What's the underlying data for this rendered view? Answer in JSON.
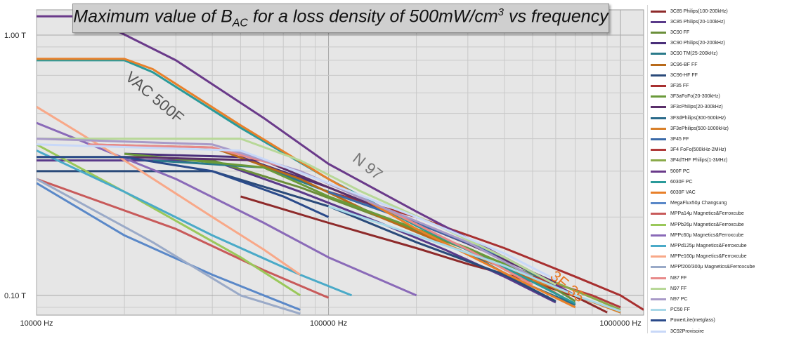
{
  "chart_data": {
    "type": "line",
    "title_parts": {
      "before": "Maximum value of B",
      "sub": "AC",
      "middle": " for a loss density of 500mW/cm",
      "sup": "3",
      "after": " vs frequency"
    },
    "x_scale": "log",
    "y_scale": "log",
    "xlim": [
      10000,
      1200000
    ],
    "ylim": [
      0.084,
      1.25
    ],
    "x_ticks": [
      {
        "value": 10000,
        "label": "10000 Hz"
      },
      {
        "value": 100000,
        "label": "100000 Hz"
      },
      {
        "value": 1000000,
        "label": "1000000 Hz"
      }
    ],
    "y_ticks": [
      {
        "value": 1.0,
        "label": "1.00 T"
      },
      {
        "value": 0.1,
        "label": "0.10 T"
      }
    ],
    "grid": true,
    "legend_position": "right",
    "annotations": [
      {
        "text": "VAC 500F",
        "x": 20000,
        "y": 0.68,
        "color": "#555555",
        "rotate": 40
      },
      {
        "text": "N 97",
        "x": 120000,
        "y": 0.33,
        "color": "#777777",
        "rotate": 38
      },
      {
        "text": "3F 35",
        "x": 570000,
        "y": 0.117,
        "color": "#e87722",
        "rotate": 40
      }
    ],
    "series": [
      {
        "name": "3C85 Philips(100-200kHz)",
        "color": "#8e2a2a",
        "x": [
          50000,
          100000,
          200000,
          300000,
          500000,
          700000,
          900000
        ],
        "y": [
          0.24,
          0.19,
          0.152,
          0.132,
          0.113,
          0.099,
          0.086
        ]
      },
      {
        "name": "3C85 Philips(20-100kHz)",
        "color": "#5a3a8a",
        "x": [
          10000,
          20000,
          40000,
          80000,
          150000,
          250000,
          400000,
          600000
        ],
        "y": [
          0.33,
          0.33,
          0.33,
          0.25,
          0.19,
          0.15,
          0.118,
          0.094
        ]
      },
      {
        "name": "3C90 FF",
        "color": "#6b8f3a",
        "x": [
          10000,
          25000,
          40000,
          80000,
          150000,
          300000,
          500000,
          700000
        ],
        "y": [
          0.34,
          0.34,
          0.33,
          0.26,
          0.2,
          0.15,
          0.12,
          0.095
        ]
      },
      {
        "name": "3C90 Philips(20-200kHz)",
        "color": "#4a2f7a",
        "x": [
          20000,
          50000,
          100000,
          200000,
          400000,
          600000
        ],
        "y": [
          0.35,
          0.34,
          0.26,
          0.19,
          0.14,
          0.11
        ]
      },
      {
        "name": "3C90 TM(25-200kHz)",
        "color": "#2a7a8a",
        "x": [
          25000,
          60000,
          100000,
          200000,
          400000,
          600000
        ],
        "y": [
          0.33,
          0.31,
          0.25,
          0.19,
          0.14,
          0.108
        ]
      },
      {
        "name": "3C96-BF FF",
        "color": "#b86a1a",
        "x": [
          15000,
          40000,
          80000,
          150000,
          300000,
          500000,
          700000
        ],
        "y": [
          0.38,
          0.37,
          0.28,
          0.2,
          0.145,
          0.115,
          0.092
        ]
      },
      {
        "name": "3C96-HF FF",
        "color": "#2a4a7a",
        "x": [
          10000,
          40000,
          100000,
          200000,
          400000,
          600000
        ],
        "y": [
          0.3,
          0.3,
          0.22,
          0.16,
          0.12,
          0.095
        ]
      },
      {
        "name": "3F35 FF",
        "color": "#a83030",
        "x": [
          100000,
          200000,
          400000,
          700000,
          1000000,
          1200000
        ],
        "y": [
          0.25,
          0.2,
          0.152,
          0.118,
          0.1,
          0.088
        ]
      },
      {
        "name": "3F3aFoFo(20-300kHz)",
        "color": "#6a9a3a",
        "x": [
          20000,
          60000,
          100000,
          200000,
          300000,
          500000
        ],
        "y": [
          0.35,
          0.31,
          0.24,
          0.18,
          0.152,
          0.118
        ]
      },
      {
        "name": "3F3cPhilips(20-300kHz)",
        "color": "#5a2f6a",
        "x": [
          20000,
          60000,
          100000,
          200000,
          300000,
          600000
        ],
        "y": [
          0.34,
          0.33,
          0.26,
          0.19,
          0.158,
          0.112
        ]
      },
      {
        "name": "3F3dPhilips(300-500kHz)",
        "color": "#2a6a8a",
        "x": [
          300000,
          400000,
          500000,
          700000
        ],
        "y": [
          0.145,
          0.122,
          0.108,
          0.092
        ]
      },
      {
        "name": "3F3ePhilips(500-1000kHz)",
        "color": "#d8802a",
        "x": [
          500000,
          700000,
          1000000
        ],
        "y": [
          0.115,
          0.1,
          0.086
        ]
      },
      {
        "name": "3F45 FF",
        "color": "#3a6aa8",
        "x": [
          100000,
          200000,
          400000,
          700000
        ],
        "y": [
          0.25,
          0.19,
          0.14,
          0.1
        ]
      },
      {
        "name": "3F4 FoFo(500kHz-2MHz)",
        "color": "#b03a3a",
        "x": [
          500000,
          800000,
          1000000
        ],
        "y": [
          0.118,
          0.1,
          0.09
        ]
      },
      {
        "name": "3F4dTHF Philips(1-3MHz)",
        "color": "#8aaa4a",
        "x": [
          600000,
          800000,
          1000000
        ],
        "y": [
          0.112,
          0.098,
          0.088
        ]
      },
      {
        "name": "500F PC",
        "color": "#6a3a8a",
        "x": [
          10000,
          15000,
          30000,
          60000,
          100000,
          200000,
          400000,
          700000
        ],
        "y": [
          1.18,
          1.18,
          0.8,
          0.48,
          0.32,
          0.21,
          0.14,
          0.1
        ]
      },
      {
        "name": "6030F PC",
        "color": "#2a9a9a",
        "x": [
          10000,
          20000,
          25000,
          50000,
          100000,
          200000,
          400000,
          700000
        ],
        "y": [
          0.8,
          0.8,
          0.72,
          0.44,
          0.28,
          0.185,
          0.128,
          0.093
        ]
      },
      {
        "name": "6030F VAC",
        "color": "#e8802a",
        "x": [
          10000,
          20000,
          25000,
          50000,
          100000,
          200000,
          400000,
          700000
        ],
        "y": [
          0.81,
          0.81,
          0.74,
          0.45,
          0.28,
          0.18,
          0.122,
          0.09
        ]
      },
      {
        "name": "MegaFlux50μ Changsung",
        "color": "#5a88c8",
        "x": [
          10000,
          20000,
          40000,
          60000,
          80000
        ],
        "y": [
          0.27,
          0.17,
          0.12,
          0.1,
          0.088
        ]
      },
      {
        "name": "MPPa14μ Magnetics&Ferroxcube",
        "color": "#c85a5a",
        "x": [
          10000,
          30000,
          60000,
          100000
        ],
        "y": [
          0.28,
          0.18,
          0.125,
          0.098
        ]
      },
      {
        "name": "MPPb26μ Magnetics&Ferroxcube",
        "color": "#9ac85a",
        "x": [
          10000,
          20000,
          50000,
          80000
        ],
        "y": [
          0.38,
          0.25,
          0.14,
          0.1
        ]
      },
      {
        "name": "MPPc60μ Magnetics&Ferroxcube",
        "color": "#8a6ab8",
        "x": [
          10000,
          30000,
          60000,
          100000,
          150000,
          200000
        ],
        "y": [
          0.46,
          0.28,
          0.19,
          0.14,
          0.115,
          0.1
        ]
      },
      {
        "name": "MPPd125μ Magnetics&Ferroxcube",
        "color": "#4aaac8",
        "x": [
          10000,
          20000,
          40000,
          80000,
          120000
        ],
        "y": [
          0.36,
          0.25,
          0.17,
          0.12,
          0.1
        ]
      },
      {
        "name": "MPPe160μ Magnetics&Ferroxcube",
        "color": "#f8a888",
        "x": [
          10000,
          20000,
          40000,
          60000,
          80000
        ],
        "y": [
          0.53,
          0.33,
          0.2,
          0.15,
          0.12
        ]
      },
      {
        "name": "MPPf200/300μ Magnetics&Ferroxcube",
        "color": "#9aaac8",
        "x": [
          10000,
          25000,
          50000,
          80000
        ],
        "y": [
          0.28,
          0.16,
          0.1,
          0.085
        ]
      },
      {
        "name": "N87 FF",
        "color": "#e88a8a",
        "x": [
          15000,
          40000,
          80000,
          150000,
          300000,
          500000
        ],
        "y": [
          0.38,
          0.37,
          0.3,
          0.22,
          0.15,
          0.11
        ]
      },
      {
        "name": "N97 FF",
        "color": "#b8d898",
        "x": [
          10000,
          50000,
          80000,
          130000,
          250000,
          400000,
          600000
        ],
        "y": [
          0.4,
          0.4,
          0.33,
          0.25,
          0.18,
          0.14,
          0.11
        ]
      },
      {
        "name": "N97 PC",
        "color": "#a89ac8",
        "x": [
          10000,
          40000,
          80000,
          150000,
          300000,
          500000
        ],
        "y": [
          0.4,
          0.38,
          0.3,
          0.22,
          0.16,
          0.118
        ]
      },
      {
        "name": "PC50 FF",
        "color": "#a8d8e8",
        "x": [
          100000,
          200000,
          400000,
          700000,
          1000000
        ],
        "y": [
          0.22,
          0.17,
          0.13,
          0.1,
          0.087
        ]
      },
      {
        "name": "PowerLite(metglass)",
        "color": "#2a4a8a",
        "x": [
          10000,
          20000,
          40000,
          70000,
          100000
        ],
        "y": [
          0.34,
          0.34,
          0.3,
          0.24,
          0.2
        ]
      },
      {
        "name": "3C92Provisoire",
        "color": "#c8d8f8",
        "x": [
          10000,
          50000,
          100000,
          200000,
          400000,
          600000
        ],
        "y": [
          0.38,
          0.36,
          0.27,
          0.2,
          0.145,
          0.115
        ]
      }
    ]
  }
}
